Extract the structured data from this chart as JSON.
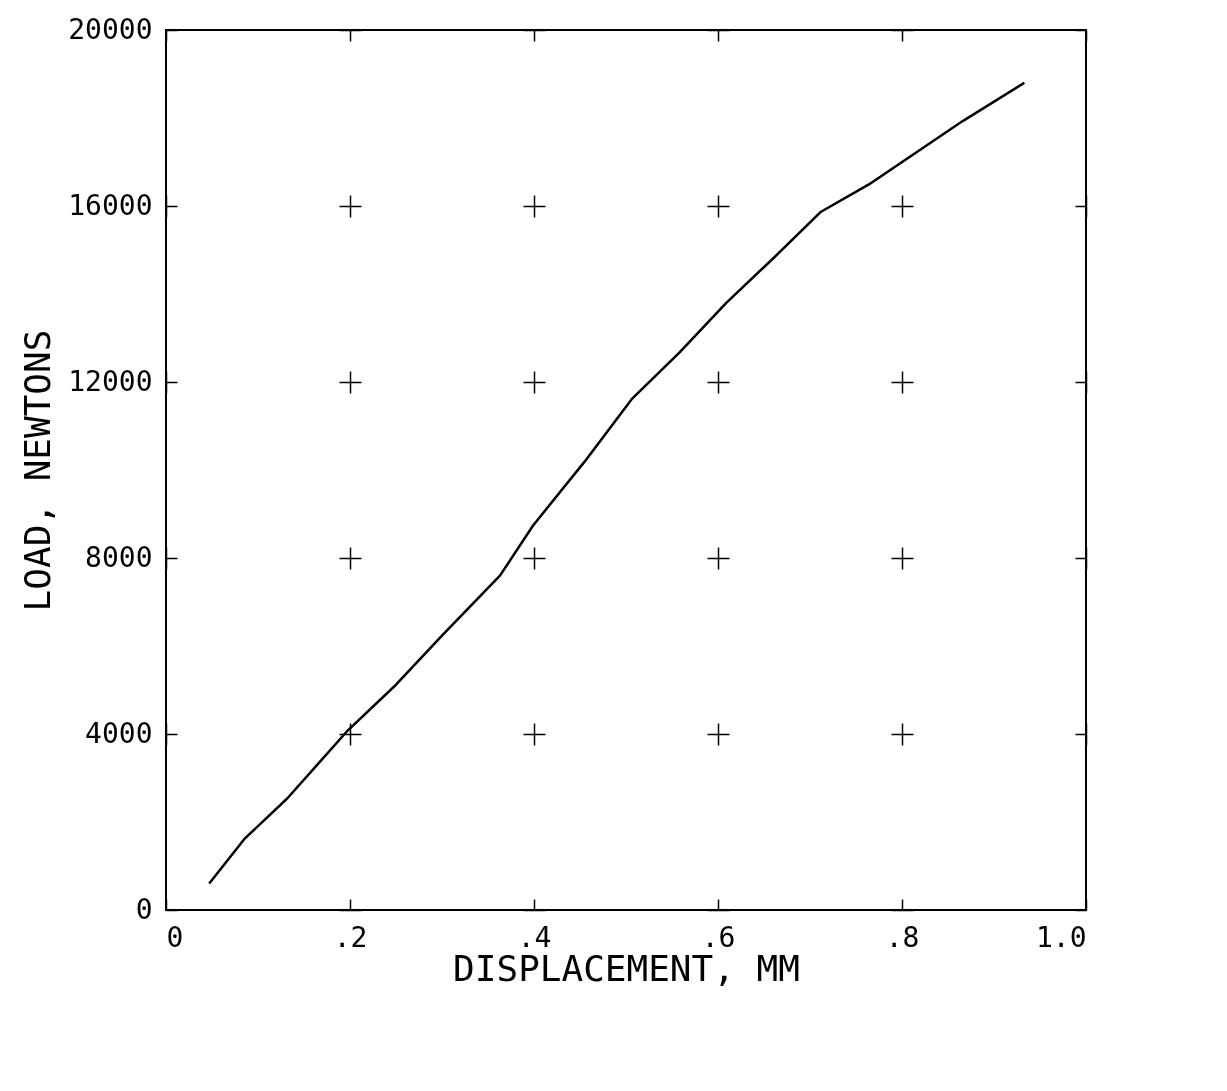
{
  "chart_data": {
    "type": "line",
    "xlabel": "DISPLACEMENT, MM",
    "ylabel": "LOAD, NEWTONS",
    "x": [
      0.047,
      0.085,
      0.132,
      0.198,
      0.25,
      0.301,
      0.363,
      0.399,
      0.455,
      0.507,
      0.558,
      0.609,
      0.661,
      0.712,
      0.764,
      0.815,
      0.866,
      0.933
    ],
    "series": [
      {
        "color": "#000000",
        "values": [
          600,
          1610,
          2540,
          4090,
          5120,
          6260,
          7600,
          8740,
          10190,
          11630,
          12670,
          13800,
          14830,
          15870,
          16490,
          17210,
          17930,
          18800
        ]
      }
    ],
    "xlim": [
      0,
      1.0
    ],
    "ylim": [
      0,
      20000
    ],
    "xticks": [
      {
        "value": 0,
        "label": "0"
      },
      {
        "value": 0.2,
        "label": ".2"
      },
      {
        "value": 0.4,
        "label": ".4"
      },
      {
        "value": 0.6,
        "label": ".6"
      },
      {
        "value": 0.8,
        "label": ".8"
      },
      {
        "value": 1.0,
        "label": "1.0"
      }
    ],
    "yticks": [
      0,
      4000,
      8000,
      12000,
      16000,
      20000
    ],
    "grid": true,
    "marker": "none",
    "line_style": "solid"
  }
}
